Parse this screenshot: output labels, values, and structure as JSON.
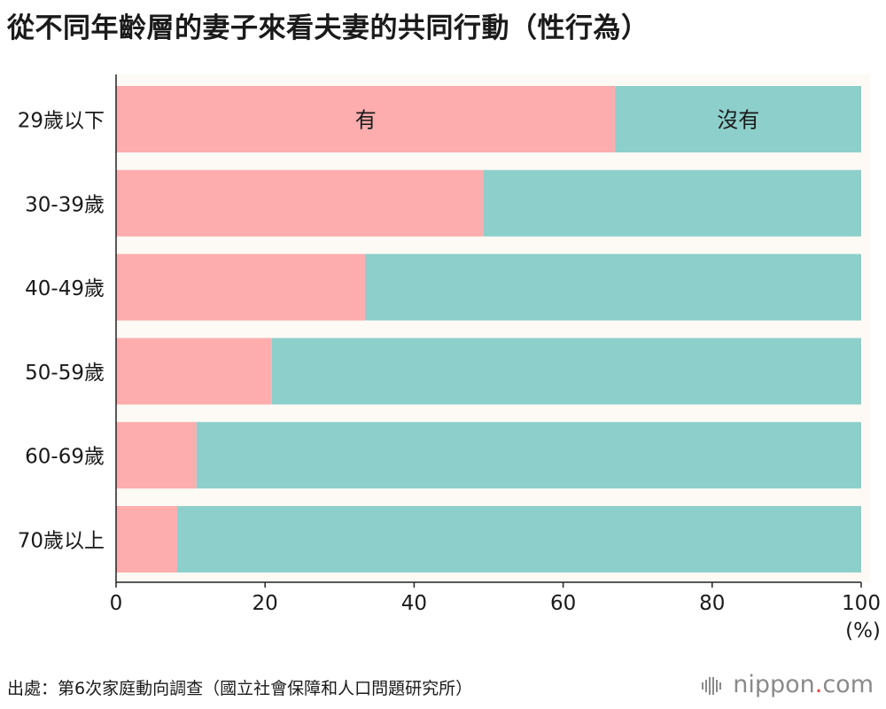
{
  "title": "從不同年齡層的妻子來看夫妻的共同行動（性行為）",
  "source": "出處：第6次家庭動向調查（國立社會保障和人口問題研究所）",
  "logo": {
    "main": "nippon",
    "dot": ".",
    "tld": "com"
  },
  "colors": {
    "yes": "#fdadae",
    "no": "#8dcfca",
    "band": "#fdfaf5",
    "axis": "#222222"
  },
  "chart_data": {
    "type": "bar",
    "orientation": "horizontal",
    "stacked": true,
    "title": "從不同年齡層的妻子來看夫妻的共同行動（性行為）",
    "categories": [
      "29歲以下",
      "30-39歲",
      "40-49歲",
      "50-59歲",
      "60-69歲",
      "70歲以上"
    ],
    "series": [
      {
        "name": "有",
        "values": [
          67,
          49.3,
          33.4,
          20.9,
          10.8,
          8.2
        ]
      },
      {
        "name": "沒有",
        "values": [
          33,
          50.7,
          66.6,
          79.1,
          89.2,
          91.8
        ]
      }
    ],
    "xlim": [
      0,
      100
    ],
    "xticks": [
      "0",
      "20",
      "40",
      "60",
      "80",
      "100"
    ],
    "unit": "(%)",
    "legend": "inside first bar"
  }
}
